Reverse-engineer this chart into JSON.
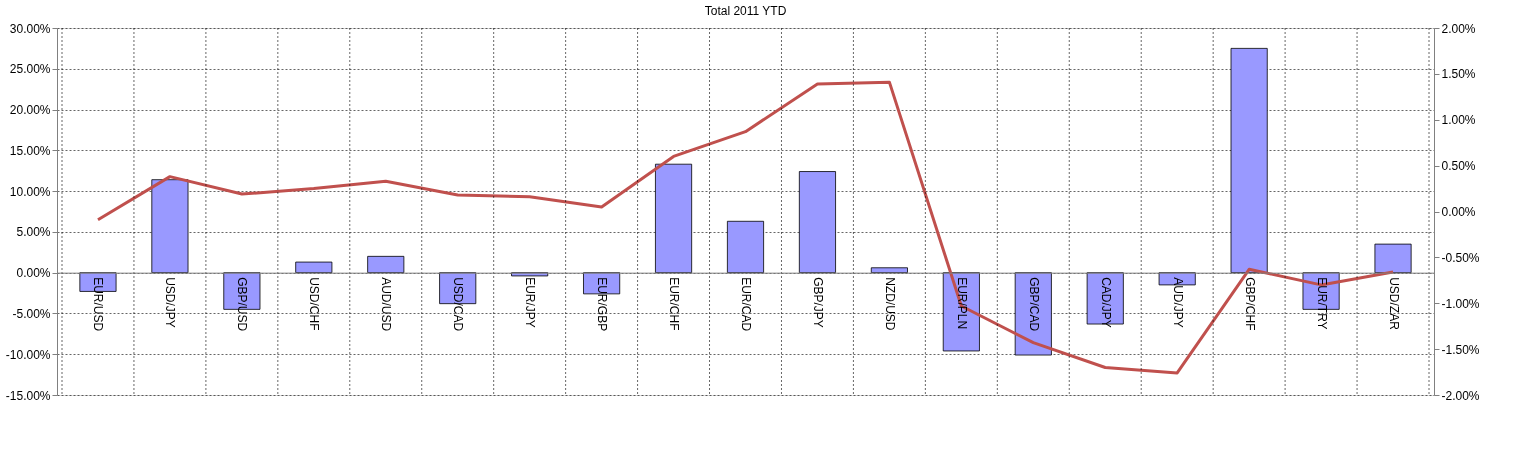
{
  "chart_data": {
    "type": "bar",
    "title": "Total 2011 YTD",
    "categories": [
      "EUR/USD",
      "USD/JPY",
      "GBP/USD",
      "USD/CHF",
      "AUD/USD",
      "USD/CAD",
      "EUR/JPY",
      "EUR/GBP",
      "EUR/CHF",
      "EUR/CAD",
      "GBP/JPY",
      "NZD/USD",
      "EUR/PLN",
      "GBP/CAD",
      "CAD/JPY",
      "AUD/JPY",
      "GBP/CHF",
      "EUR/TRY",
      "USD/ZAR"
    ],
    "series": [
      {
        "color": "#9999ff",
        "values": [
          -2.3,
          11.4,
          -4.5,
          1.3,
          2.0,
          -3.8,
          -0.4,
          -2.6,
          13.3,
          6.3,
          12.4,
          0.6,
          -9.6,
          -10.1,
          -6.3,
          -1.5,
          27.5,
          -4.5,
          3.5
        ]
      },
      {
        "type": "line",
        "axis": "y2",
        "color": "#c0504d",
        "values": [
          -0.09,
          0.38,
          0.19,
          0.25,
          0.33,
          0.18,
          0.16,
          0.05,
          0.6,
          0.87,
          1.39,
          1.41,
          -1.03,
          -1.43,
          -1.7,
          -1.76,
          -0.63,
          -0.8,
          -0.66
        ]
      }
    ],
    "ylim": [
      -15,
      30
    ],
    "yticks": [
      {
        "value": -15,
        "label": "-15.00%"
      },
      {
        "value": -10,
        "label": "-10.00%"
      },
      {
        "value": -5,
        "label": "-5.00%"
      },
      {
        "value": 0,
        "label": "0.00%"
      },
      {
        "value": 5,
        "label": "5.00%"
      },
      {
        "value": 10,
        "label": "10.00%"
      },
      {
        "value": 15,
        "label": "15.00%"
      },
      {
        "value": 20,
        "label": "20.00%"
      },
      {
        "value": 25,
        "label": "25.00%"
      },
      {
        "value": 30,
        "label": "30.00%"
      }
    ],
    "y2lim": [
      -2,
      2
    ],
    "y2ticks": [
      {
        "value": -2,
        "label": "-2.00%"
      },
      {
        "value": -1.5,
        "label": "-1.50%"
      },
      {
        "value": -1,
        "label": "-1.00%"
      },
      {
        "value": -0.5,
        "label": "-0.50%"
      },
      {
        "value": 0,
        "label": "0.00%"
      },
      {
        "value": 0.5,
        "label": "0.50%"
      },
      {
        "value": 1,
        "label": "1.00%"
      },
      {
        "value": 1.5,
        "label": "1.50%"
      },
      {
        "value": 2,
        "label": "2.00%"
      }
    ],
    "grid": true,
    "legend": false,
    "marker": "none",
    "line_style": "solid"
  }
}
